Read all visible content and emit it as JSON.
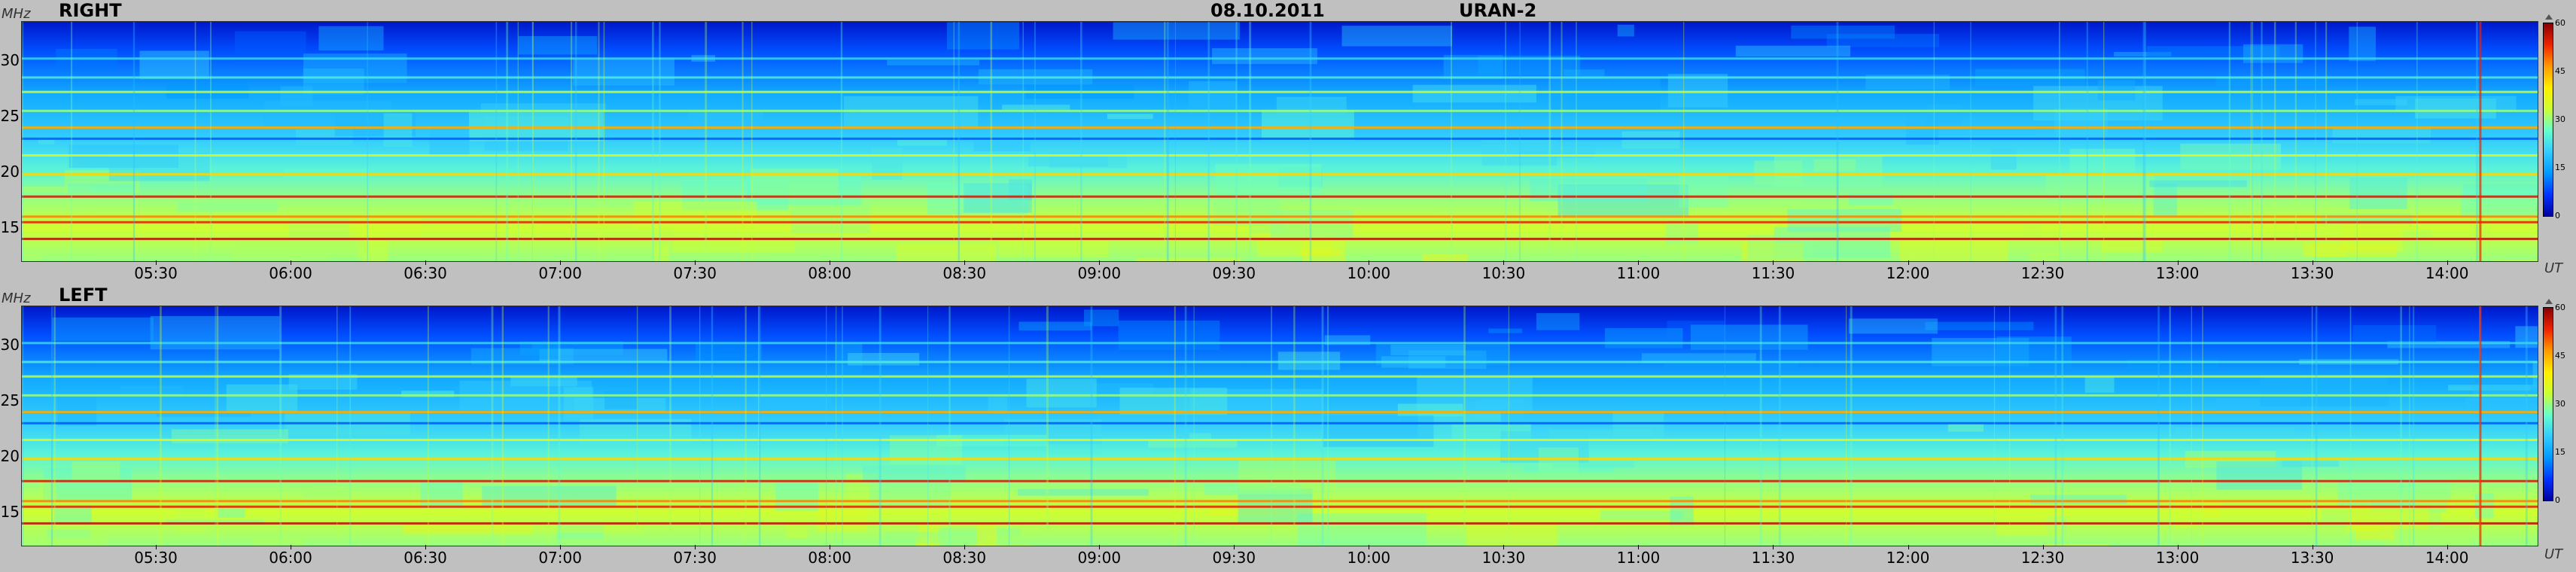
{
  "header": {
    "date": "08.10.2011",
    "instrument": "URAN-2"
  },
  "colors": {
    "background": "#c0c0c0",
    "colormap": [
      "#0000a0",
      "#0033ff",
      "#0099ff",
      "#33ccff",
      "#66ffcc",
      "#ccff33",
      "#ffee00",
      "#ff9900",
      "#ee2200",
      "#880000"
    ]
  },
  "colorbar_icon": "scale-toggle-icon",
  "chart_data": [
    {
      "type": "heatmap",
      "title": "RIGHT",
      "ylabel": "MHz",
      "xlabel": "UT",
      "y_ticks": [
        "30",
        "25",
        "20",
        "15"
      ],
      "y_tick_values": [
        30,
        25,
        20,
        15
      ],
      "ylim": [
        12,
        33.5
      ],
      "x_ticks": [
        "05:30",
        "06:00",
        "06:30",
        "07:00",
        "07:30",
        "08:00",
        "08:30",
        "09:00",
        "09:30",
        "10:00",
        "10:30",
        "11:00",
        "11:30",
        "12:00",
        "12:30",
        "13:00",
        "13:30",
        "14:00"
      ],
      "xlim": [
        "05:00",
        "14:20"
      ],
      "colorbar": {
        "ticks": [
          "60",
          "45",
          "30",
          "15",
          "0"
        ],
        "range": [
          0,
          60
        ]
      },
      "grid": false
    },
    {
      "type": "heatmap",
      "title": "LEFT",
      "ylabel": "MHz",
      "xlabel": "UT",
      "y_ticks": [
        "30",
        "25",
        "20",
        "15"
      ],
      "y_tick_values": [
        30,
        25,
        20,
        15
      ],
      "ylim": [
        12,
        33.5
      ],
      "x_ticks": [
        "05:30",
        "06:00",
        "06:30",
        "07:00",
        "07:30",
        "08:00",
        "08:30",
        "09:00",
        "09:30",
        "10:00",
        "10:30",
        "11:00",
        "11:30",
        "12:00",
        "12:30",
        "13:00",
        "13:30",
        "14:00"
      ],
      "xlim": [
        "05:00",
        "14:20"
      ],
      "colorbar": {
        "ticks": [
          "60",
          "45",
          "30",
          "15",
          "0"
        ],
        "range": [
          0,
          60
        ]
      },
      "grid": false
    }
  ]
}
